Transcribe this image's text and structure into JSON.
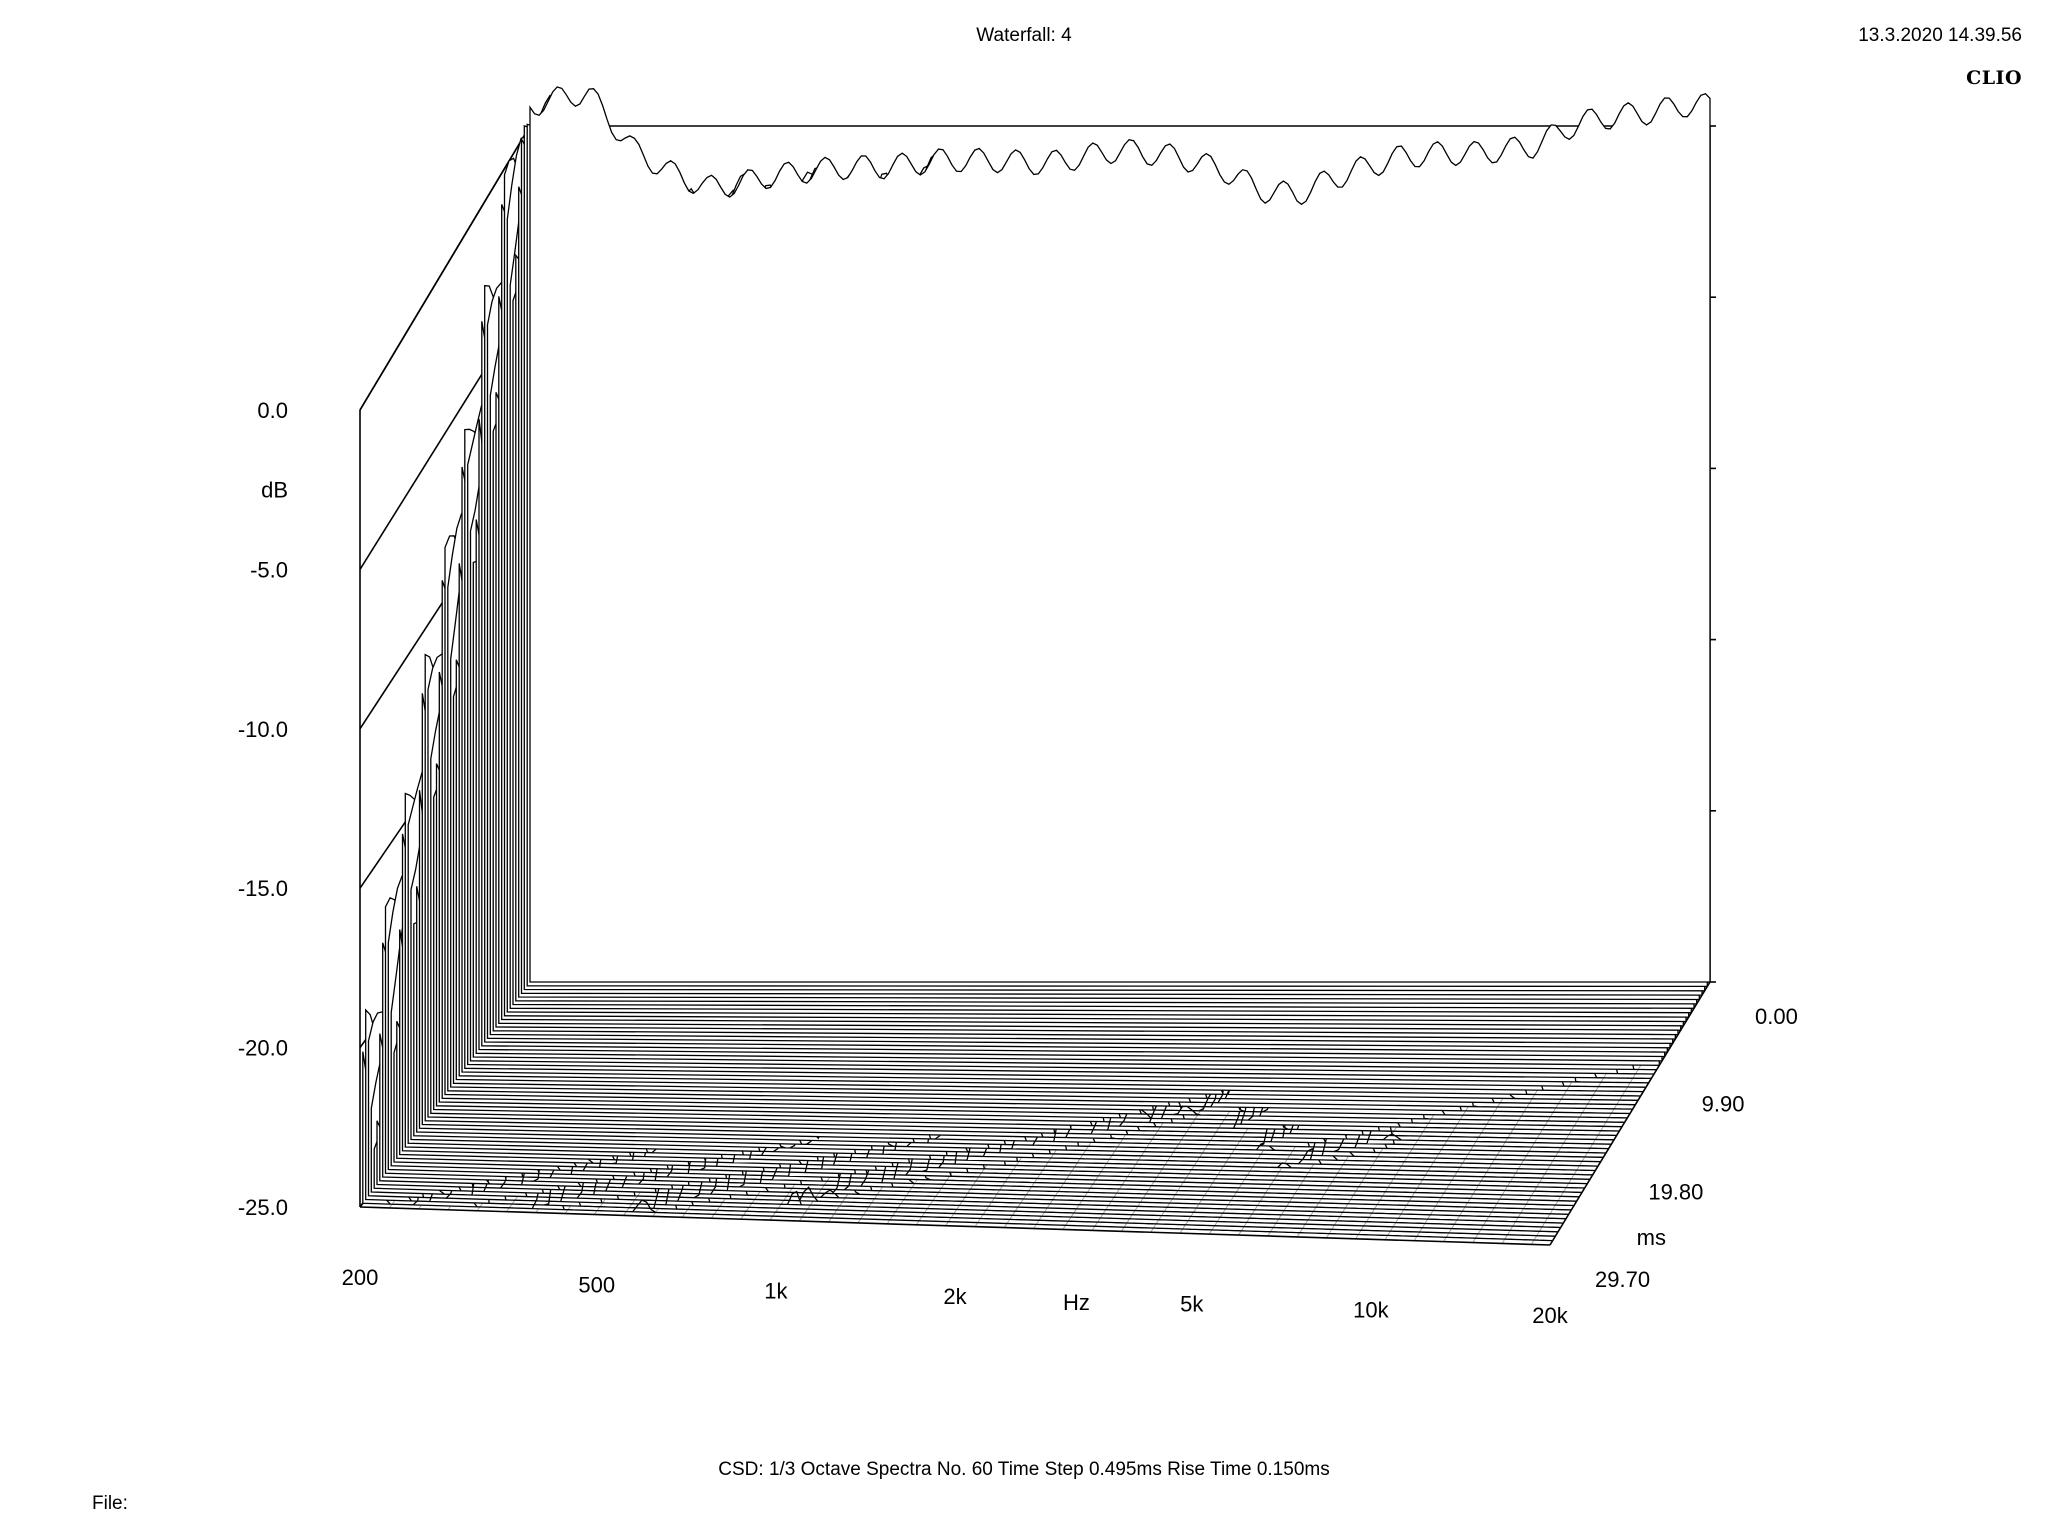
{
  "header": {
    "title": "Waterfall: 4",
    "timestamp": "13.3.2020 14.39.56",
    "brand": "CLIO"
  },
  "footer": {
    "settings": "CSD:   1/3 Octave   Spectra No. 60   Time Step 0.495ms   Rise Time 0.150ms",
    "file_label": "File:"
  },
  "chart_data": {
    "type": "waterfall",
    "x_axis": {
      "label": "Hz",
      "scale": "log",
      "range": [
        200,
        20000
      ],
      "ticks": [
        {
          "value": 200,
          "label": "200"
        },
        {
          "value": 500,
          "label": "500"
        },
        {
          "value": 1000,
          "label": "1k"
        },
        {
          "value": 2000,
          "label": "2k"
        },
        {
          "value": 5000,
          "label": "5k"
        },
        {
          "value": 10000,
          "label": "10k"
        },
        {
          "value": 20000,
          "label": "20k"
        }
      ]
    },
    "y_axis": {
      "label": "dB",
      "range": [
        -25,
        0
      ],
      "ticks": [
        {
          "value": 0,
          "label": "0.0"
        },
        {
          "value": -5,
          "label": "-5.0"
        },
        {
          "value": -10,
          "label": "-10.0"
        },
        {
          "value": -15,
          "label": "-15.0"
        },
        {
          "value": -20,
          "label": "-20.0"
        },
        {
          "value": -25,
          "label": "-25.0"
        }
      ]
    },
    "z_axis": {
      "label": "ms",
      "range": [
        0,
        29.7
      ],
      "ticks": [
        {
          "value": 0,
          "label": "0.00"
        },
        {
          "value": 9.9,
          "label": "9.90"
        },
        {
          "value": 19.8,
          "label": "19.80"
        },
        {
          "value": 29.7,
          "label": "29.70"
        }
      ]
    },
    "spectra_count": 60,
    "time_step_ms": 0.495,
    "rise_time_ms": 0.15,
    "smoothing": "1/3 Octave",
    "initial_response_db": [
      [
        200,
        0.6
      ],
      [
        250,
        1.0
      ],
      [
        300,
        -0.7
      ],
      [
        350,
        -1.4
      ],
      [
        400,
        -1.8
      ],
      [
        450,
        -1.7
      ],
      [
        500,
        -1.5
      ],
      [
        600,
        -1.3
      ],
      [
        700,
        -1.2
      ],
      [
        800,
        -1.2
      ],
      [
        900,
        -1.1
      ],
      [
        1000,
        -1.0
      ],
      [
        1200,
        -1.0
      ],
      [
        1500,
        -1.1
      ],
      [
        2000,
        -0.7
      ],
      [
        2500,
        -0.9
      ],
      [
        3000,
        -1.3
      ],
      [
        3500,
        -1.9
      ],
      [
        4000,
        -2.0
      ],
      [
        4500,
        -1.6
      ],
      [
        5000,
        -1.3
      ],
      [
        6000,
        -0.9
      ],
      [
        7000,
        -0.8
      ],
      [
        8000,
        -0.8
      ],
      [
        9000,
        -0.7
      ],
      [
        10000,
        -0.6
      ],
      [
        12000,
        0.1
      ],
      [
        14000,
        0.3
      ],
      [
        16000,
        0.4
      ],
      [
        18000,
        0.6
      ],
      [
        20000,
        0.6
      ]
    ],
    "decay_profile": [
      {
        "freq": 200,
        "decay_db_per_ms": 0.8,
        "modulation_db": 3.0
      },
      {
        "freq": 500,
        "decay_db_per_ms": 0.9,
        "modulation_db": 4.0
      },
      {
        "freq": 1000,
        "decay_db_per_ms": 1.0,
        "modulation_db": 4.0
      },
      {
        "freq": 2000,
        "decay_db_per_ms": 1.1,
        "modulation_db": 3.0
      },
      {
        "freq": 4000,
        "decay_db_per_ms": 1.6,
        "modulation_db": 2.0
      },
      {
        "freq": 6000,
        "decay_db_per_ms": 1.2,
        "modulation_db": 2.5
      },
      {
        "freq": 8000,
        "decay_db_per_ms": 1.3,
        "modulation_db": 2.5
      },
      {
        "freq": 12000,
        "decay_db_per_ms": 1.8,
        "modulation_db": 2.0
      },
      {
        "freq": 20000,
        "decay_db_per_ms": 2.6,
        "modulation_db": 1.0
      }
    ]
  }
}
